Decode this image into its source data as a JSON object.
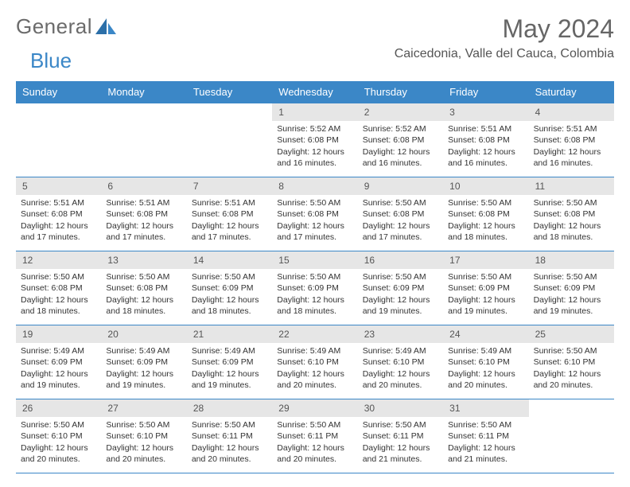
{
  "logo": {
    "text1": "General",
    "text2": "Blue"
  },
  "title": "May 2024",
  "location": "Caicedonia, Valle del Cauca, Colombia",
  "colors": {
    "brand": "#3b87c7",
    "grayText": "#6b6b6b",
    "cellHead": "#e6e6e6"
  },
  "dayNames": [
    "Sunday",
    "Monday",
    "Tuesday",
    "Wednesday",
    "Thursday",
    "Friday",
    "Saturday"
  ],
  "labels": {
    "sunrise": "Sunrise:",
    "sunset": "Sunset:",
    "daylight": "Daylight:"
  },
  "weeks": [
    [
      null,
      null,
      null,
      {
        "d": "1",
        "sr": "5:52 AM",
        "ss": "6:08 PM",
        "dl": "12 hours and 16 minutes."
      },
      {
        "d": "2",
        "sr": "5:52 AM",
        "ss": "6:08 PM",
        "dl": "12 hours and 16 minutes."
      },
      {
        "d": "3",
        "sr": "5:51 AM",
        "ss": "6:08 PM",
        "dl": "12 hours and 16 minutes."
      },
      {
        "d": "4",
        "sr": "5:51 AM",
        "ss": "6:08 PM",
        "dl": "12 hours and 16 minutes."
      }
    ],
    [
      {
        "d": "5",
        "sr": "5:51 AM",
        "ss": "6:08 PM",
        "dl": "12 hours and 17 minutes."
      },
      {
        "d": "6",
        "sr": "5:51 AM",
        "ss": "6:08 PM",
        "dl": "12 hours and 17 minutes."
      },
      {
        "d": "7",
        "sr": "5:51 AM",
        "ss": "6:08 PM",
        "dl": "12 hours and 17 minutes."
      },
      {
        "d": "8",
        "sr": "5:50 AM",
        "ss": "6:08 PM",
        "dl": "12 hours and 17 minutes."
      },
      {
        "d": "9",
        "sr": "5:50 AM",
        "ss": "6:08 PM",
        "dl": "12 hours and 17 minutes."
      },
      {
        "d": "10",
        "sr": "5:50 AM",
        "ss": "6:08 PM",
        "dl": "12 hours and 18 minutes."
      },
      {
        "d": "11",
        "sr": "5:50 AM",
        "ss": "6:08 PM",
        "dl": "12 hours and 18 minutes."
      }
    ],
    [
      {
        "d": "12",
        "sr": "5:50 AM",
        "ss": "6:08 PM",
        "dl": "12 hours and 18 minutes."
      },
      {
        "d": "13",
        "sr": "5:50 AM",
        "ss": "6:08 PM",
        "dl": "12 hours and 18 minutes."
      },
      {
        "d": "14",
        "sr": "5:50 AM",
        "ss": "6:09 PM",
        "dl": "12 hours and 18 minutes."
      },
      {
        "d": "15",
        "sr": "5:50 AM",
        "ss": "6:09 PM",
        "dl": "12 hours and 18 minutes."
      },
      {
        "d": "16",
        "sr": "5:50 AM",
        "ss": "6:09 PM",
        "dl": "12 hours and 19 minutes."
      },
      {
        "d": "17",
        "sr": "5:50 AM",
        "ss": "6:09 PM",
        "dl": "12 hours and 19 minutes."
      },
      {
        "d": "18",
        "sr": "5:50 AM",
        "ss": "6:09 PM",
        "dl": "12 hours and 19 minutes."
      }
    ],
    [
      {
        "d": "19",
        "sr": "5:49 AM",
        "ss": "6:09 PM",
        "dl": "12 hours and 19 minutes."
      },
      {
        "d": "20",
        "sr": "5:49 AM",
        "ss": "6:09 PM",
        "dl": "12 hours and 19 minutes."
      },
      {
        "d": "21",
        "sr": "5:49 AM",
        "ss": "6:09 PM",
        "dl": "12 hours and 19 minutes."
      },
      {
        "d": "22",
        "sr": "5:49 AM",
        "ss": "6:10 PM",
        "dl": "12 hours and 20 minutes."
      },
      {
        "d": "23",
        "sr": "5:49 AM",
        "ss": "6:10 PM",
        "dl": "12 hours and 20 minutes."
      },
      {
        "d": "24",
        "sr": "5:49 AM",
        "ss": "6:10 PM",
        "dl": "12 hours and 20 minutes."
      },
      {
        "d": "25",
        "sr": "5:50 AM",
        "ss": "6:10 PM",
        "dl": "12 hours and 20 minutes."
      }
    ],
    [
      {
        "d": "26",
        "sr": "5:50 AM",
        "ss": "6:10 PM",
        "dl": "12 hours and 20 minutes."
      },
      {
        "d": "27",
        "sr": "5:50 AM",
        "ss": "6:10 PM",
        "dl": "12 hours and 20 minutes."
      },
      {
        "d": "28",
        "sr": "5:50 AM",
        "ss": "6:11 PM",
        "dl": "12 hours and 20 minutes."
      },
      {
        "d": "29",
        "sr": "5:50 AM",
        "ss": "6:11 PM",
        "dl": "12 hours and 20 minutes."
      },
      {
        "d": "30",
        "sr": "5:50 AM",
        "ss": "6:11 PM",
        "dl": "12 hours and 21 minutes."
      },
      {
        "d": "31",
        "sr": "5:50 AM",
        "ss": "6:11 PM",
        "dl": "12 hours and 21 minutes."
      },
      null
    ]
  ]
}
